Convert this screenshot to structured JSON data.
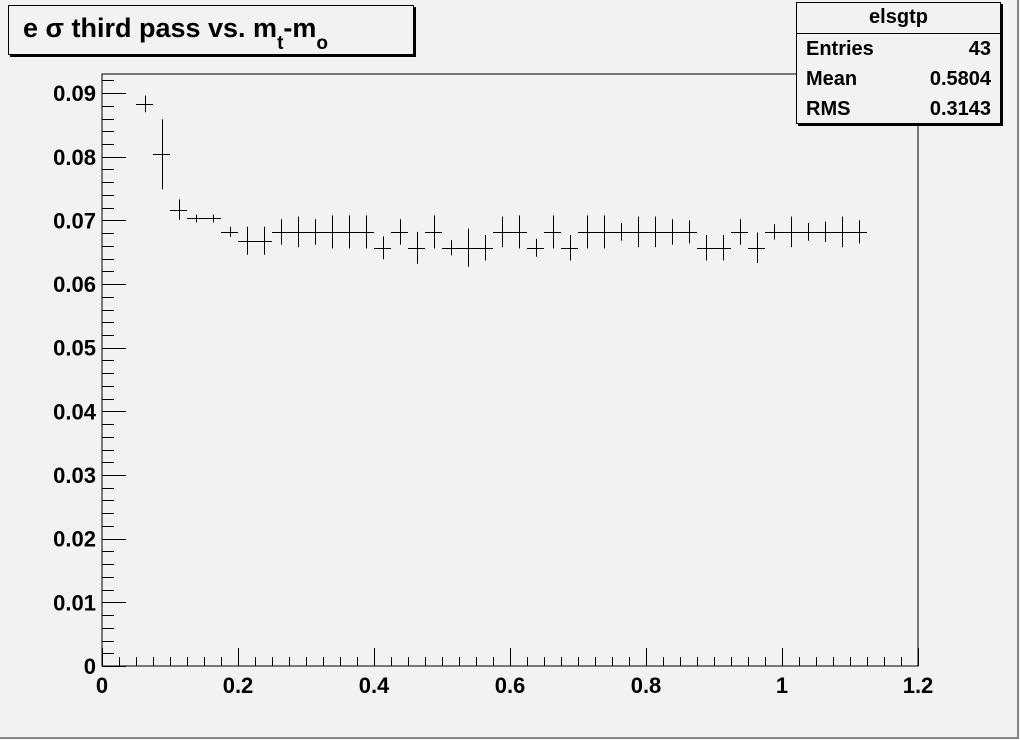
{
  "chart_data": {
    "type": "scatter",
    "title": {
      "prefix": "e σ third pass vs. m",
      "sub1": "t",
      "mid": "-m",
      "sub2": "o"
    },
    "xlim": [
      0,
      1.2
    ],
    "ylim": [
      0,
      0.093
    ],
    "x_ticks": [
      "0",
      "0.2",
      "0.4",
      "0.6",
      "0.8",
      "1",
      "1.2"
    ],
    "y_ticks": [
      "0",
      "0.01",
      "0.02",
      "0.03",
      "0.04",
      "0.05",
      "0.06",
      "0.07",
      "0.08",
      "0.09"
    ],
    "bin_width": 0.025,
    "x": [
      0.0625,
      0.0875,
      0.1125,
      0.1375,
      0.1625,
      0.1875,
      0.2125,
      0.2375,
      0.2625,
      0.2875,
      0.3125,
      0.3375,
      0.3625,
      0.3875,
      0.4125,
      0.4375,
      0.4625,
      0.4875,
      0.5125,
      0.5375,
      0.5625,
      0.5875,
      0.6125,
      0.6375,
      0.6625,
      0.6875,
      0.7125,
      0.7375,
      0.7625,
      0.7875,
      0.8125,
      0.8375,
      0.8625,
      0.8875,
      0.9125,
      0.9375,
      0.9625,
      0.9875,
      1.0125,
      1.0375,
      1.0625,
      1.0875,
      1.1125
    ],
    "y": [
      0.0883,
      0.0804,
      0.0717,
      0.0703,
      0.0703,
      0.0682,
      0.0668,
      0.0668,
      0.0682,
      0.0682,
      0.0682,
      0.0682,
      0.0682,
      0.0682,
      0.0657,
      0.0682,
      0.0657,
      0.0682,
      0.0657,
      0.0657,
      0.0657,
      0.0682,
      0.0682,
      0.0657,
      0.0682,
      0.0657,
      0.0682,
      0.0682,
      0.0682,
      0.0682,
      0.0682,
      0.0682,
      0.0682,
      0.0657,
      0.0657,
      0.0682,
      0.0657,
      0.0682,
      0.0682,
      0.0682,
      0.0682,
      0.0682,
      0.0682
    ],
    "yerr": [
      0.0013,
      0.0055,
      0.0016,
      0.0006,
      0.0006,
      0.0008,
      0.0022,
      0.0022,
      0.002,
      0.0024,
      0.002,
      0.0026,
      0.0026,
      0.0026,
      0.0018,
      0.002,
      0.0025,
      0.0026,
      0.0012,
      0.003,
      0.002,
      0.0024,
      0.0026,
      0.0014,
      0.0026,
      0.002,
      0.0026,
      0.0026,
      0.0014,
      0.0024,
      0.0024,
      0.002,
      0.0018,
      0.002,
      0.002,
      0.002,
      0.0024,
      0.0012,
      0.0024,
      0.0014,
      0.0016,
      0.0024,
      0.0018
    ],
    "grid": false,
    "legend": "none"
  },
  "stats": {
    "name": "elsgtp",
    "rows": [
      {
        "label": "Entries",
        "value": "43"
      },
      {
        "label": "Mean",
        "value": "0.5804"
      },
      {
        "label": "RMS",
        "value": "0.3143"
      }
    ]
  },
  "colors": {
    "background": "#f2f2f2",
    "marker": "#000000"
  }
}
